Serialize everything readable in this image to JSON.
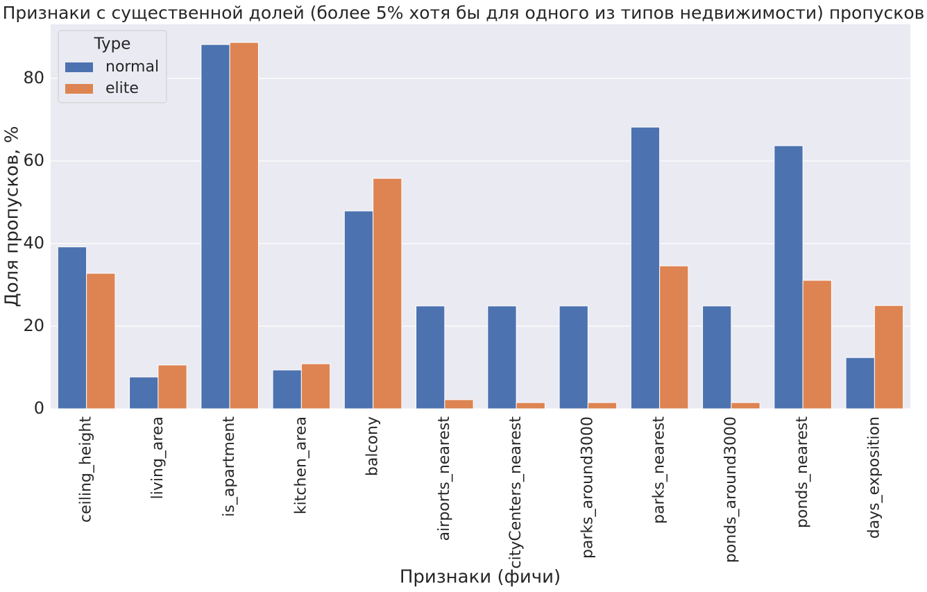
{
  "chart_data": {
    "type": "bar",
    "title": "Признаки с существенной долей (более 5% хотя бы для одного из типов недвижимости) пропусков",
    "x_label": "Признаки (фичи)",
    "y_label": "Доля пропусков, %",
    "legend_title": "Type",
    "legend_position": "upper-left",
    "grid": true,
    "categories": [
      "ceiling_height",
      "living_area",
      "is_apartment",
      "kitchen_area",
      "balcony",
      "airports_nearest",
      "cityCenters_nearest",
      "parks_around3000",
      "parks_nearest",
      "ponds_around3000",
      "ponds_nearest",
      "days_exposition"
    ],
    "series": [
      {
        "name": "normal",
        "color": "#4c72b0",
        "values": [
          39.2,
          7.7,
          88.2,
          9.4,
          47.9,
          24.9,
          24.9,
          24.9,
          68.2,
          24.9,
          63.7,
          12.4
        ]
      },
      {
        "name": "elite",
        "color": "#dd8452",
        "values": [
          32.8,
          10.6,
          88.7,
          10.9,
          55.8,
          2.2,
          1.5,
          1.5,
          34.6,
          1.5,
          31.1,
          25.0
        ]
      }
    ],
    "ylim": [
      0,
      93.1
    ],
    "yticks": [
      0,
      20,
      40,
      60,
      80
    ]
  }
}
